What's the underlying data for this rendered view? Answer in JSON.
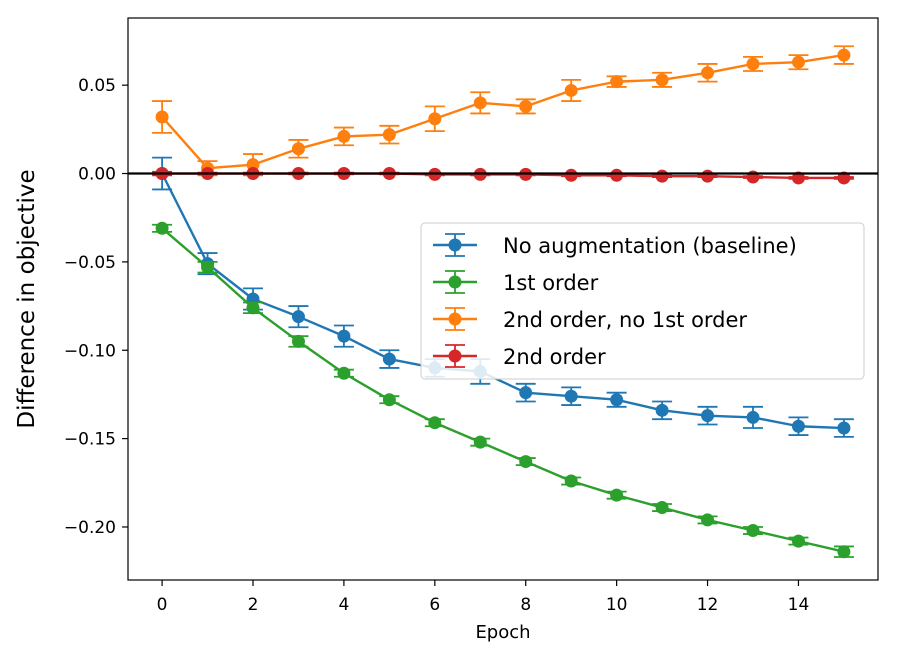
{
  "chart_data": {
    "type": "line",
    "title": "",
    "xlabel": "Epoch",
    "ylabel": "Difference in objective",
    "xlim": [
      -0.75,
      15.75
    ],
    "ylim": [
      -0.23,
      0.088
    ],
    "x_ticks": [
      0,
      2,
      4,
      6,
      8,
      10,
      12,
      14
    ],
    "x_tick_labels": [
      "0",
      "2",
      "4",
      "6",
      "8",
      "10",
      "12",
      "14"
    ],
    "y_ticks": [
      0.05,
      0.0,
      -0.05,
      -0.1,
      -0.15,
      -0.2
    ],
    "y_tick_labels": [
      "0.05",
      "0.00",
      "−0.05",
      "−0.10",
      "−0.15",
      "−0.20"
    ],
    "grid": false,
    "reference_line": {
      "y": 0.0,
      "color": "#000000"
    },
    "legend_placement": "center-right",
    "x": [
      0,
      1,
      2,
      3,
      4,
      5,
      6,
      7,
      8,
      9,
      10,
      11,
      12,
      13,
      14,
      15
    ],
    "series": [
      {
        "name": "No augmentation (baseline)",
        "color": "#1f77b4",
        "values": [
          0.0,
          -0.051,
          -0.071,
          -0.081,
          -0.092,
          -0.105,
          -0.11,
          -0.112,
          -0.124,
          -0.126,
          -0.128,
          -0.134,
          -0.137,
          -0.138,
          -0.143,
          -0.144
        ],
        "errors": [
          0.009,
          0.006,
          0.006,
          0.006,
          0.006,
          0.005,
          0.005,
          0.007,
          0.005,
          0.005,
          0.004,
          0.005,
          0.005,
          0.006,
          0.005,
          0.005
        ]
      },
      {
        "name": "1st order",
        "color": "#2ca02c",
        "values": [
          -0.031,
          -0.053,
          -0.076,
          -0.095,
          -0.113,
          -0.128,
          -0.141,
          -0.152,
          -0.163,
          -0.174,
          -0.182,
          -0.189,
          -0.196,
          -0.202,
          -0.208,
          -0.214
        ],
        "errors": [
          0.002,
          0.003,
          0.003,
          0.003,
          0.002,
          0.002,
          0.002,
          0.002,
          0.002,
          0.002,
          0.002,
          0.002,
          0.002,
          0.002,
          0.002,
          0.003
        ]
      },
      {
        "name": "2nd order, no 1st order",
        "color": "#ff7f0e",
        "values": [
          0.032,
          0.003,
          0.005,
          0.014,
          0.021,
          0.022,
          0.031,
          0.04,
          0.038,
          0.047,
          0.052,
          0.053,
          0.057,
          0.062,
          0.063,
          0.067
        ],
        "errors": [
          0.009,
          0.004,
          0.006,
          0.005,
          0.005,
          0.005,
          0.007,
          0.006,
          0.004,
          0.006,
          0.003,
          0.004,
          0.005,
          0.004,
          0.004,
          0.005
        ]
      },
      {
        "name": "2nd order",
        "color": "#d62728",
        "values": [
          0.0,
          0.0,
          0.0,
          0.0,
          0.0,
          0.0,
          -0.0005,
          -0.0005,
          -0.0005,
          -0.001,
          -0.001,
          -0.0015,
          -0.0015,
          -0.002,
          -0.0025,
          -0.0025
        ],
        "errors": [
          0.001,
          0.0005,
          0.0005,
          0.0005,
          0.0005,
          0.0005,
          0.0005,
          0.0005,
          0.0005,
          0.0005,
          0.0005,
          0.0005,
          0.0005,
          0.0005,
          0.0005,
          0.0005
        ]
      }
    ]
  }
}
